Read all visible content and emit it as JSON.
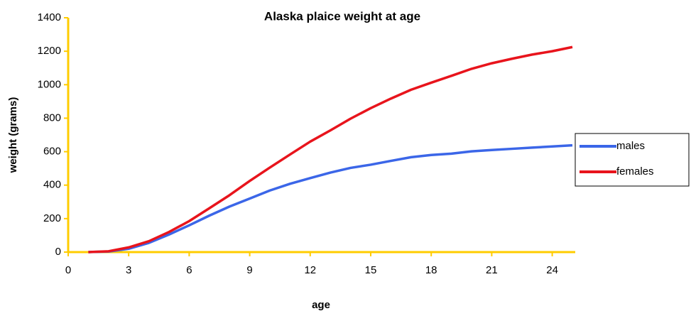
{
  "chart_data": {
    "type": "line",
    "title": "Alaska plaice weight at age",
    "x_label": "age",
    "y_label": "weight (grams)",
    "x": [
      1,
      2,
      3,
      4,
      5,
      6,
      7,
      8,
      9,
      10,
      11,
      12,
      13,
      14,
      15,
      16,
      17,
      18,
      19,
      20,
      21,
      22,
      23,
      24,
      25
    ],
    "series": [
      {
        "name": "males",
        "color": "#3b66e8",
        "values": [
          0,
          3,
          20,
          55,
          105,
          160,
          218,
          272,
          320,
          368,
          408,
          442,
          475,
          503,
          522,
          545,
          567,
          580,
          588,
          602,
          610,
          617,
          624,
          631,
          638
        ]
      },
      {
        "name": "females",
        "color": "#e8141c",
        "values": [
          0,
          5,
          28,
          65,
          120,
          185,
          262,
          340,
          425,
          505,
          583,
          660,
          727,
          797,
          860,
          917,
          970,
          1012,
          1053,
          1095,
          1128,
          1155,
          1180,
          1200,
          1225
        ]
      }
    ],
    "xlim": [
      0,
      25
    ],
    "xticks": [
      0,
      3,
      6,
      9,
      12,
      15,
      18,
      21,
      24
    ],
    "ylim": [
      0,
      1400
    ],
    "yticks": [
      0,
      200,
      400,
      600,
      800,
      1000,
      1200,
      1400
    ],
    "grid": false,
    "legend": "right",
    "axis_color": "#ffcc00"
  }
}
